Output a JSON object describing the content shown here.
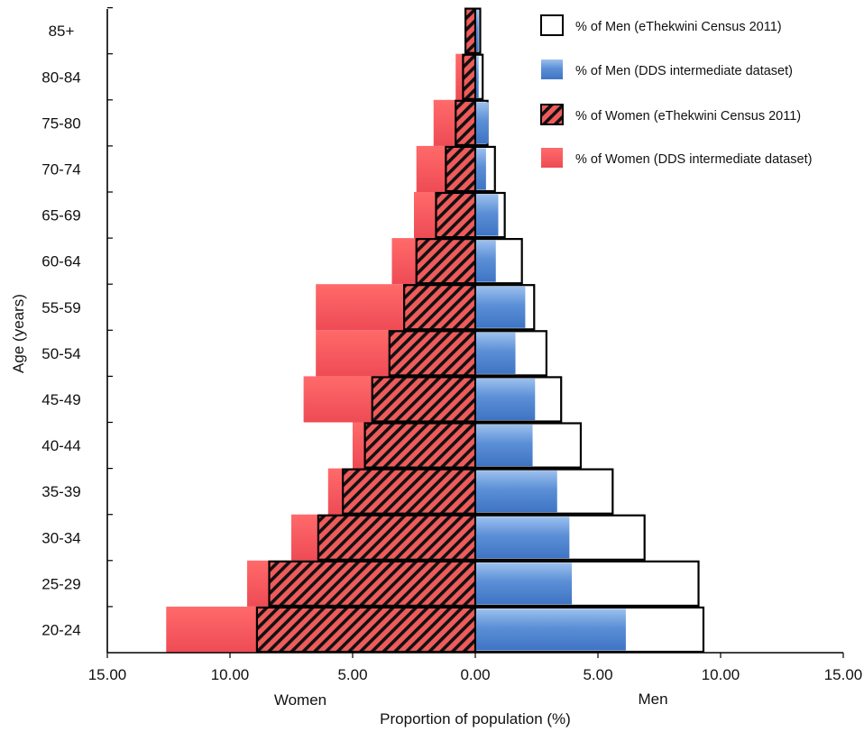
{
  "chart_data": {
    "type": "bar",
    "orientation": "horizontal-population-pyramid",
    "xlabel": "Proportion of population (%)",
    "ylabel": "Age (years)",
    "side_labels": {
      "left": "Women",
      "right": "Men"
    },
    "xlim": [
      -15,
      15
    ],
    "x_ticks": [
      "15.00",
      "10.00",
      "5.00",
      "0.00",
      "5.00",
      "10.00",
      "15.00"
    ],
    "categories": [
      "20-24",
      "25-29",
      "30-34",
      "35-39",
      "40-44",
      "45-49",
      "50-54",
      "55-59",
      "60-64",
      "65-69",
      "70-74",
      "75-80",
      "80-84",
      "85+"
    ],
    "series": [
      {
        "name": "% of Men (eThekwini Census 2011)",
        "side": "right",
        "style": "outline",
        "values": [
          9.3,
          9.1,
          6.9,
          5.6,
          4.3,
          3.5,
          2.9,
          2.4,
          1.9,
          1.2,
          0.8,
          0.5,
          0.3,
          0.2
        ]
      },
      {
        "name": "% of Men (DDS intermediate dataset)",
        "side": "right",
        "style": "blue-gradient",
        "values": [
          6.1,
          3.9,
          3.8,
          3.3,
          2.3,
          2.4,
          1.6,
          2.0,
          0.8,
          0.9,
          0.4,
          0.5,
          0.1,
          0.1
        ]
      },
      {
        "name": "% of Women (eThekwini Census 2011)",
        "side": "left",
        "style": "hatched",
        "values": [
          8.9,
          8.4,
          6.4,
          5.4,
          4.5,
          4.2,
          3.5,
          2.9,
          2.4,
          1.6,
          1.2,
          0.8,
          0.5,
          0.4
        ]
      },
      {
        "name": "% of Women (DDS intermediate dataset)",
        "side": "left",
        "style": "red-fill",
        "values": [
          12.6,
          9.3,
          7.5,
          6.0,
          5.0,
          7.0,
          6.5,
          6.5,
          3.4,
          2.5,
          2.4,
          1.7,
          0.8,
          0.3
        ]
      }
    ],
    "legend_position": "top-right",
    "grid": false,
    "colors": {
      "men_dds": "#4a7fcb",
      "women_dds": "#ef5050",
      "outline": "#000000"
    }
  }
}
